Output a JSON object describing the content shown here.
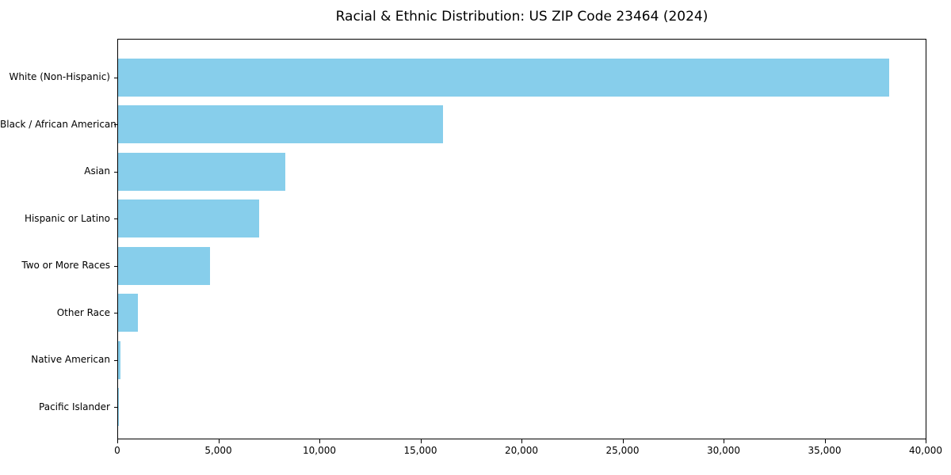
{
  "chart_data": {
    "type": "bar",
    "orientation": "horizontal",
    "title": "Racial & Ethnic Distribution: US ZIP Code 23464 (2024)",
    "categories": [
      "White (Non-Hispanic)",
      "Black / African American",
      "Asian",
      "Hispanic or Latino",
      "Two or More Races",
      "Other Race",
      "Native American",
      "Pacific Islander"
    ],
    "values": [
      38150,
      16070,
      8270,
      6980,
      4550,
      980,
      120,
      40
    ],
    "xlabel": "",
    "ylabel": "",
    "xlim": [
      0,
      40000
    ],
    "x_ticks": [
      0,
      5000,
      10000,
      15000,
      20000,
      25000,
      30000,
      35000,
      40000
    ],
    "x_tick_labels": [
      "0",
      "5,000",
      "10,000",
      "15,000",
      "20,000",
      "25,000",
      "30,000",
      "35,000",
      "40,000"
    ],
    "bar_color": "#87CEEB",
    "background_color": "#ffffff",
    "spine_color": "#000000",
    "grid": false,
    "legend": null
  }
}
